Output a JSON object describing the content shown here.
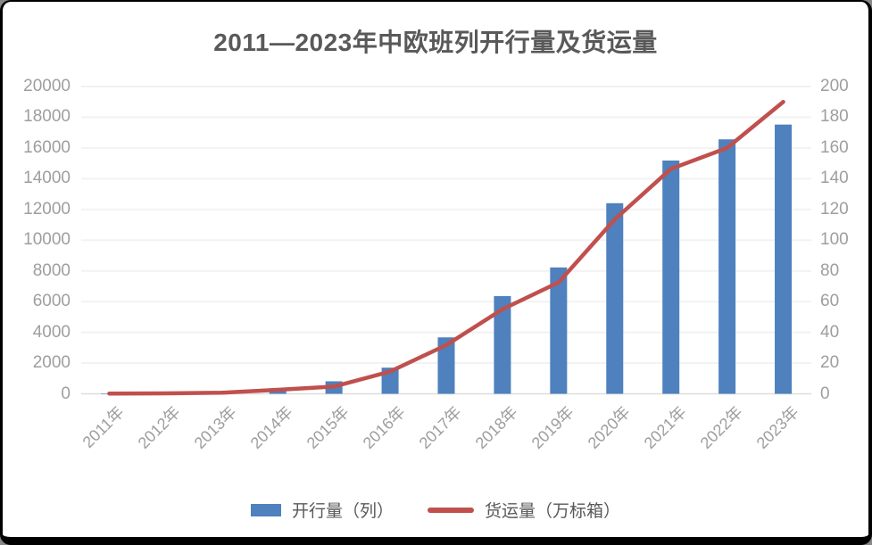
{
  "page": {
    "background": "#FFFFFF",
    "frame_color": "#000000"
  },
  "chart_data": {
    "type": "combo-bar-line",
    "title": "2011—2023年中欧班列开行量及货运量",
    "categories": [
      "2011年",
      "2012年",
      "2013年",
      "2014年",
      "2015年",
      "2016年",
      "2017年",
      "2018年",
      "2019年",
      "2020年",
      "2021年",
      "2022年",
      "2023年"
    ],
    "series": [
      {
        "name": "开行量（列）",
        "chart_type": "bar",
        "axis": "left",
        "color": "#4E81BD",
        "values": [
          17,
          42,
          80,
          308,
          815,
          1702,
          3673,
          6363,
          8225,
          12406,
          15183,
          16562,
          17523
        ]
      },
      {
        "name": "货运量（万标箱）",
        "chart_type": "line",
        "axis": "right",
        "color": "#C0504D",
        "values": [
          0.14,
          0.3,
          0.7,
          2.6,
          4.7,
          14.5,
          31.7,
          55,
          72.5,
          113.5,
          146.4,
          160,
          190
        ]
      }
    ],
    "left_axis": {
      "min": 0,
      "max": 20000,
      "step": 2000,
      "tick_labels": [
        "0",
        "2000",
        "4000",
        "6000",
        "8000",
        "10000",
        "12000",
        "14000",
        "16000",
        "18000",
        "20000"
      ]
    },
    "right_axis": {
      "min": 0,
      "max": 200,
      "step": 20,
      "tick_labels": [
        "0",
        "20",
        "40",
        "60",
        "80",
        "100",
        "120",
        "140",
        "160",
        "180",
        "200"
      ]
    },
    "grid": "horizontal",
    "legend_position": "bottom",
    "styles": {
      "grid_color": "#F2F2F2",
      "axis_line_color": "#DEDEDE",
      "tick_label_color": "#9E9E9E",
      "title_color": "#595959",
      "legend_text_color": "#595959"
    }
  }
}
